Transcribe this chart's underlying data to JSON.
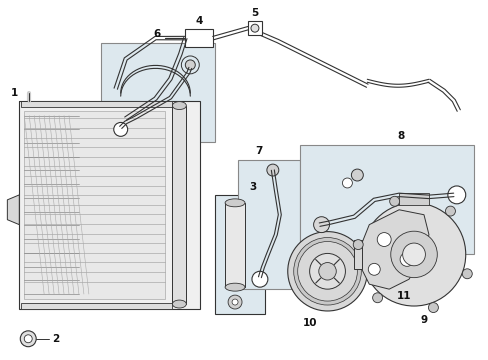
{
  "bg_color": "#ffffff",
  "fig_width": 4.89,
  "fig_height": 3.6,
  "dpi": 100,
  "line_color": "#333333",
  "light_fill": "#e8e8e8",
  "box_fill": "#dde8ee"
}
